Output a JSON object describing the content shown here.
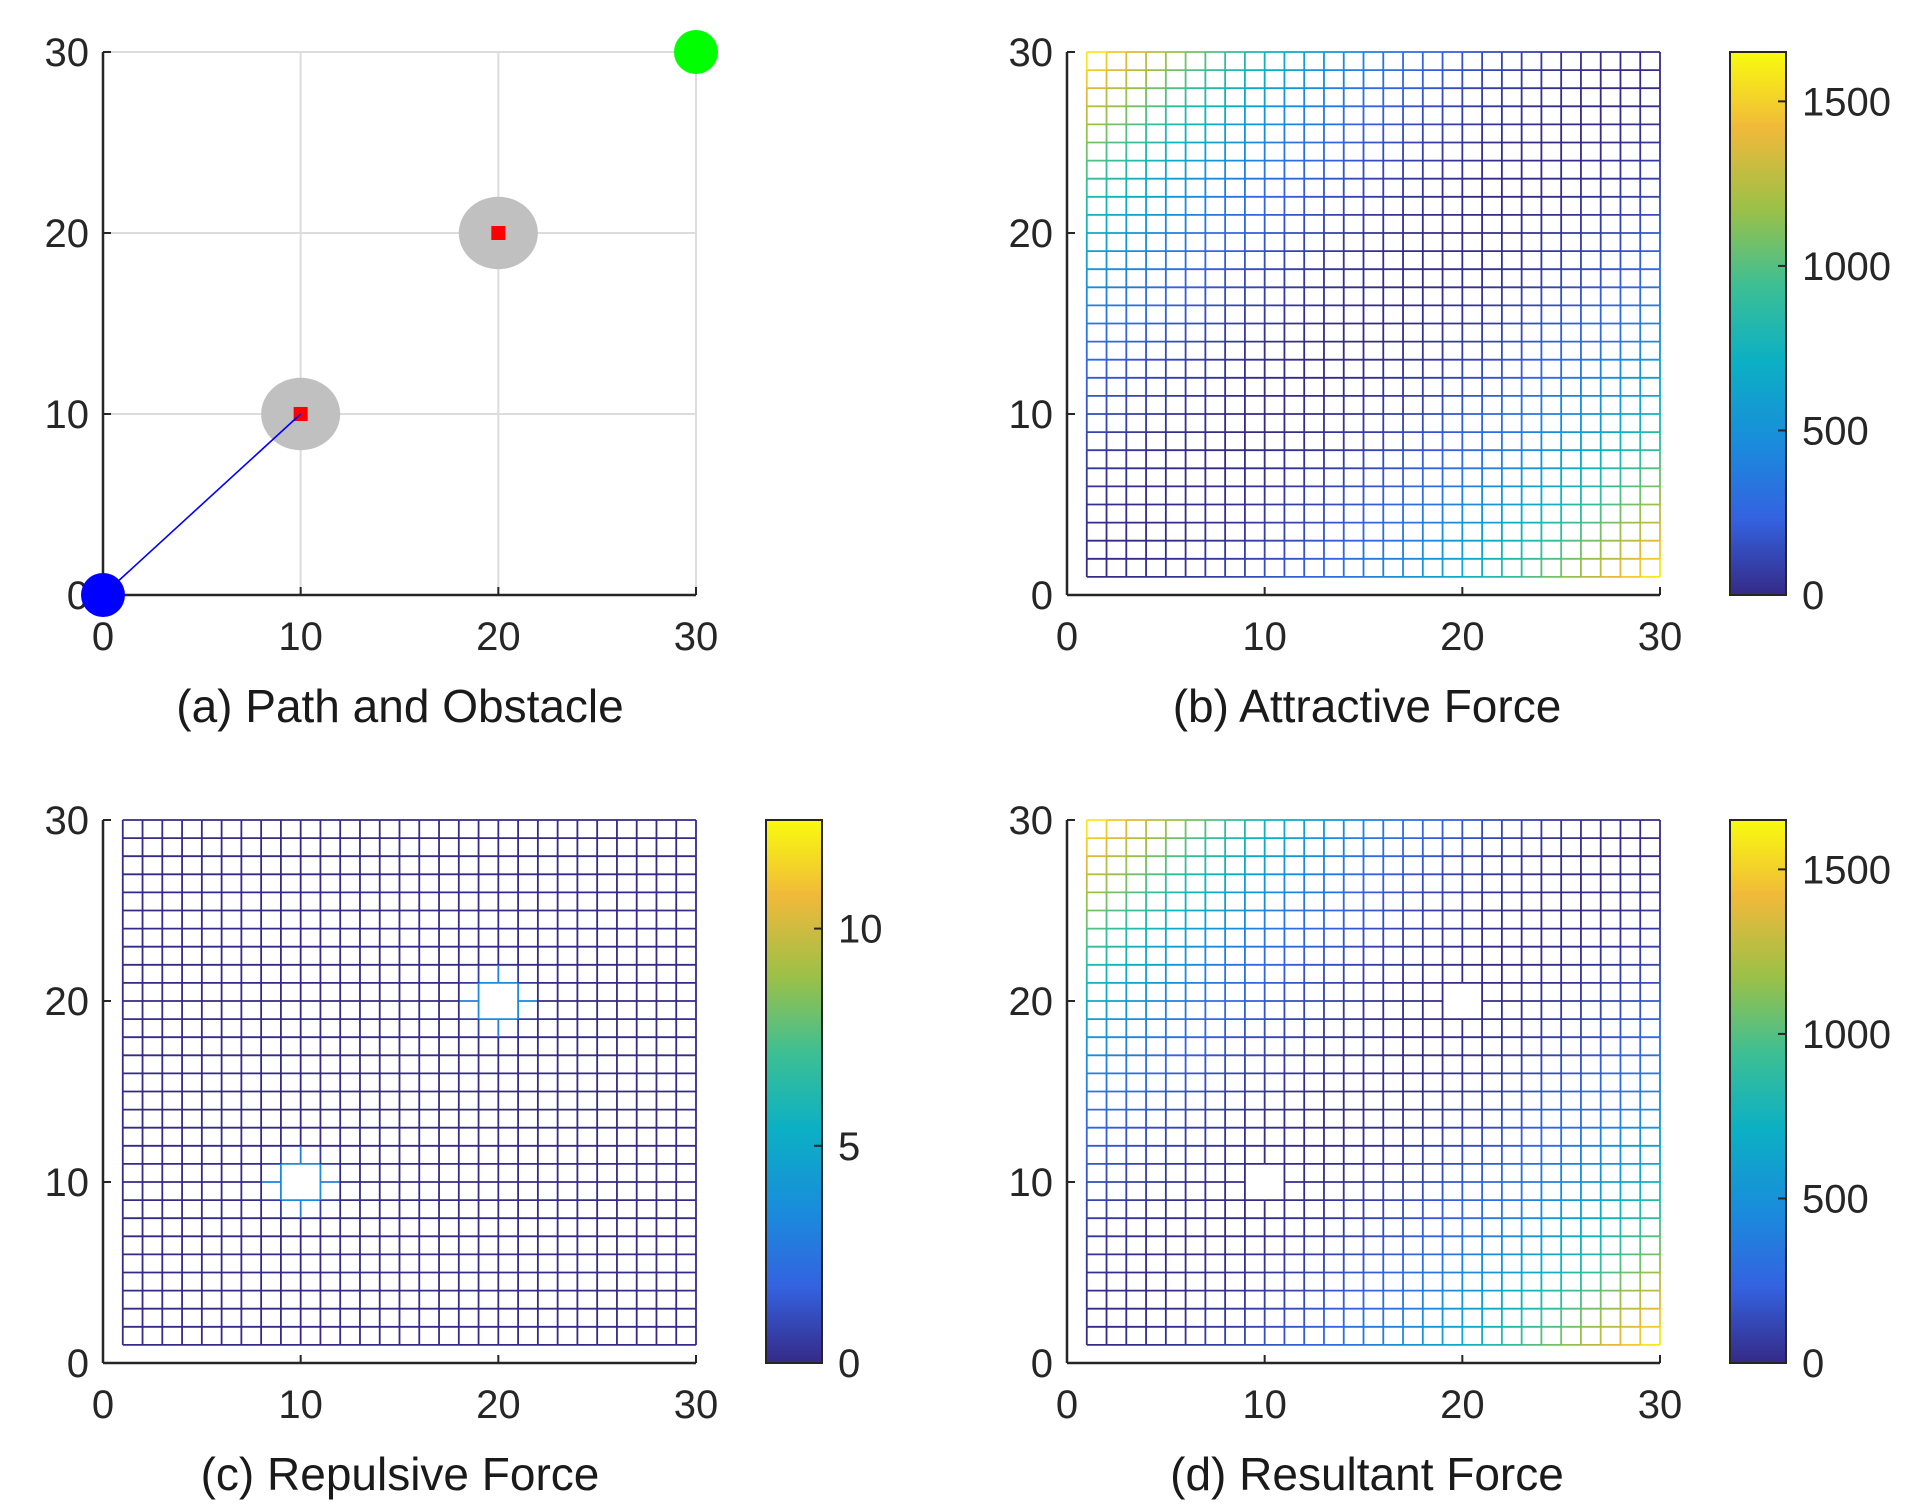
{
  "colors": {
    "path": "#0000ff",
    "start_marker": "#0000ff",
    "goal_marker": "#00ff00",
    "obstacle_center": "#ff0000",
    "obstacle_zone": "#c0c0c0",
    "grid": "#dcdcdc",
    "axis": "#262626",
    "colormap": "parula"
  },
  "chart_data": [
    {
      "id": "a",
      "type": "scatter",
      "caption": "(a) Path and Obstacle",
      "xlim": [
        0,
        30
      ],
      "ylim": [
        0,
        30
      ],
      "xticks": [
        0,
        10,
        20,
        30
      ],
      "yticks": [
        0,
        10,
        20,
        30
      ],
      "xtick_labels": [
        "0",
        "10",
        "20",
        "30"
      ],
      "ytick_labels": [
        "0",
        "10",
        "20",
        "30"
      ],
      "grid": true,
      "start": [
        0,
        0
      ],
      "goal": [
        30,
        30
      ],
      "obstacles": [
        [
          10,
          10
        ],
        [
          20,
          20
        ]
      ],
      "obstacle_radius": 2,
      "path": [
        [
          0,
          0
        ],
        [
          10,
          10
        ]
      ]
    },
    {
      "id": "b",
      "type": "heatmap",
      "surface": "attractive",
      "caption": "(b) Attractive Force",
      "xlim": [
        0,
        30
      ],
      "ylim": [
        0,
        30
      ],
      "xticks": [
        0,
        10,
        20,
        30
      ],
      "yticks": [
        0,
        10,
        20,
        30
      ],
      "xtick_labels": [
        "0",
        "10",
        "20",
        "30"
      ],
      "ytick_labels": [
        "0",
        "10",
        "20",
        "30"
      ],
      "grid_range": [
        1,
        30
      ],
      "clim": [
        0,
        1650
      ],
      "colorbar_ticks": [
        0,
        500,
        1000,
        1500
      ],
      "colorbar_labels": [
        "0",
        "500",
        "1000",
        "1500"
      ]
    },
    {
      "id": "c",
      "type": "heatmap",
      "surface": "repulsive",
      "caption": "(c) Repulsive Force",
      "xlim": [
        0,
        30
      ],
      "ylim": [
        0,
        30
      ],
      "xticks": [
        0,
        10,
        20,
        30
      ],
      "yticks": [
        0,
        10,
        20,
        30
      ],
      "xtick_labels": [
        "0",
        "10",
        "20",
        "30"
      ],
      "ytick_labels": [
        "0",
        "10",
        "20",
        "30"
      ],
      "grid_range": [
        1,
        30
      ],
      "clim": [
        0,
        12.5
      ],
      "colorbar_ticks": [
        0,
        5,
        10
      ],
      "colorbar_labels": [
        "0",
        "5",
        "10"
      ]
    },
    {
      "id": "d",
      "type": "heatmap",
      "surface": "resultant",
      "caption": "(d)  Resultant Force",
      "xlim": [
        0,
        30
      ],
      "ylim": [
        0,
        30
      ],
      "xticks": [
        0,
        10,
        20,
        30
      ],
      "yticks": [
        0,
        10,
        20,
        30
      ],
      "xtick_labels": [
        "0",
        "10",
        "20",
        "30"
      ],
      "ytick_labels": [
        "0",
        "10",
        "20",
        "30"
      ],
      "grid_range": [
        1,
        30
      ],
      "clim": [
        0,
        1650
      ],
      "colorbar_ticks": [
        0,
        500,
        1000,
        1500
      ],
      "colorbar_labels": [
        "0",
        "500",
        "1000",
        "1500"
      ]
    }
  ]
}
